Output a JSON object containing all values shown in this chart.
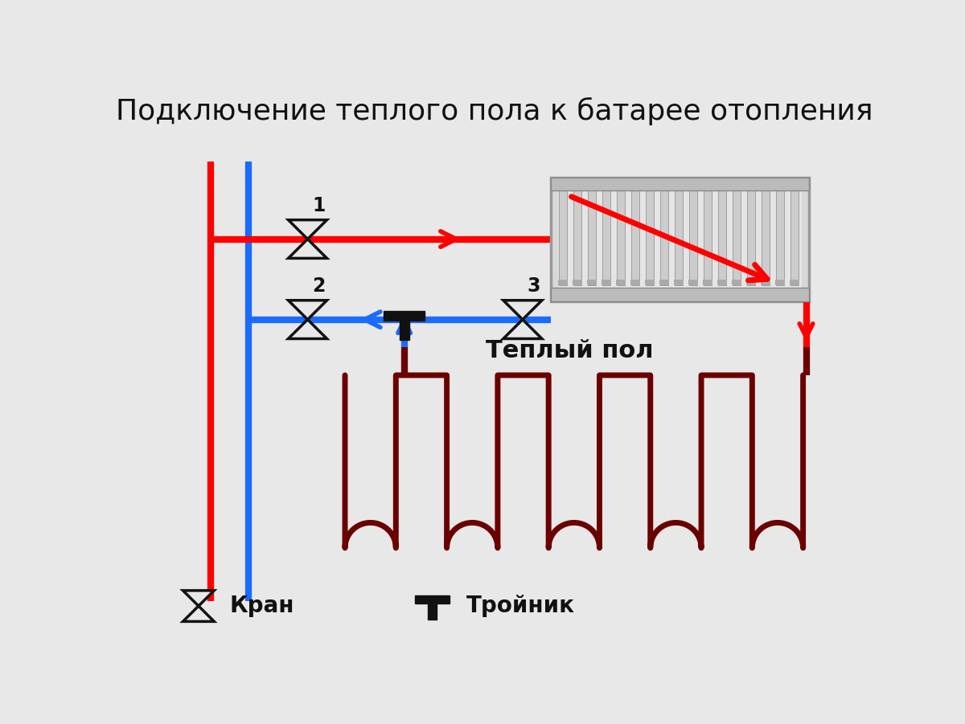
{
  "title": "Подключение теплого пола к батарее отопления",
  "title_fontsize": 26,
  "bg_color": "#e8e8e8",
  "red_color": "#ff0000",
  "blue_color": "#1a6cff",
  "dark_red_color": "#6b0000",
  "black_color": "#111111",
  "label_teplo": "Теплый пол",
  "label_kran": "Кран",
  "label_troyn": "Тройник",
  "valve_outline": "#000000",
  "valve_fill": "#e8e8e8"
}
